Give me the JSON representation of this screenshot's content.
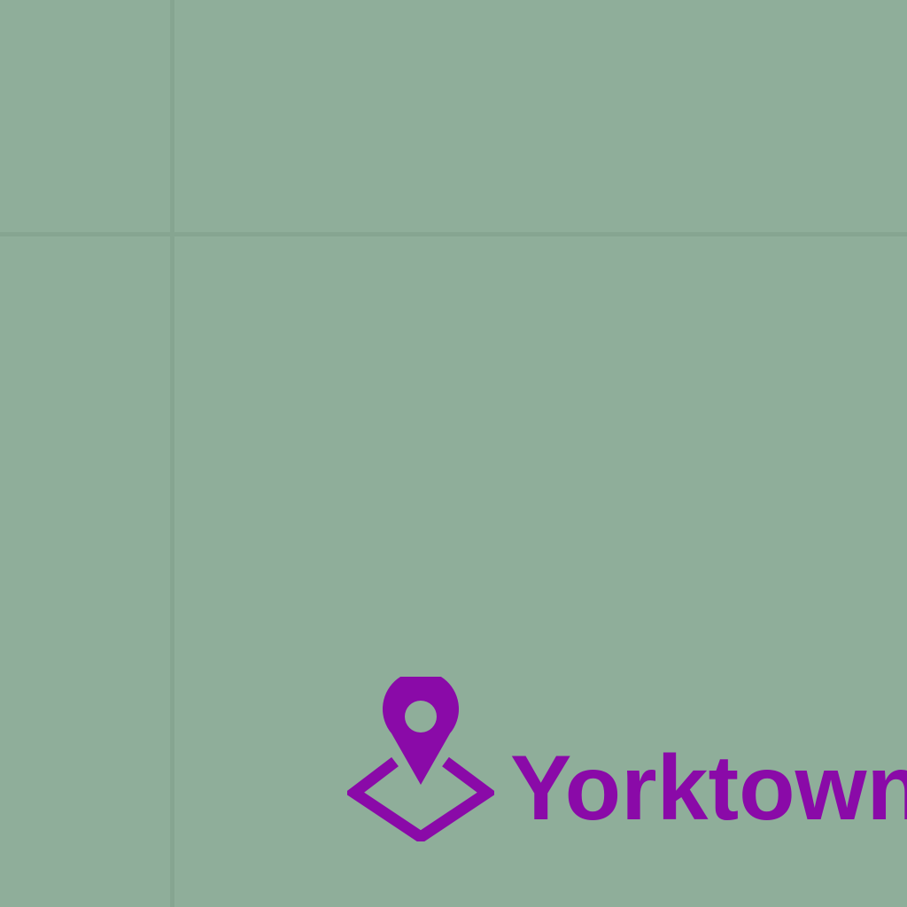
{
  "map": {
    "background_color": "#8fae9a",
    "gridline_color": "#86a591",
    "place_marker": {
      "label": "Yorktown",
      "icon": "place-pin-icon",
      "color": "#8a0aa8"
    }
  }
}
